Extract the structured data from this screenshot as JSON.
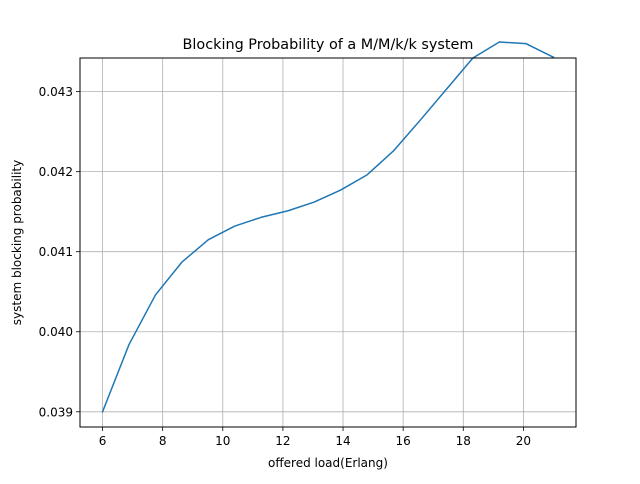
{
  "chart_data": {
    "type": "line",
    "title": "Blocking Probability of a M/M/k/k system",
    "xlabel": "offered load(Erlang)",
    "ylabel": "system blocking probability",
    "xlim": [
      5.25,
      21.75
    ],
    "ylim": [
      0.03881,
      0.04342
    ],
    "xticks": [
      6,
      8,
      10,
      12,
      14,
      16,
      18,
      20
    ],
    "xtick_labels": [
      "6",
      "8",
      "10",
      "12",
      "14",
      "16",
      "18",
      "20"
    ],
    "yticks": [
      0.039,
      0.04,
      0.041,
      0.042,
      0.043
    ],
    "ytick_labels": [
      "0.039",
      "0.040",
      "0.041",
      "0.042",
      "0.043"
    ],
    "grid": true,
    "line_color": "#1f77b4",
    "series": [
      {
        "x": [
          6.0,
          6.88,
          7.76,
          8.64,
          9.52,
          10.4,
          11.28,
          12.16,
          13.04,
          13.92,
          14.8,
          15.68,
          16.56,
          17.44,
          18.32,
          19.2,
          20.08,
          21.0
        ],
        "y": [
          0.039,
          0.03984,
          0.04046,
          0.04087,
          0.04115,
          0.04132,
          0.04143,
          0.04151,
          0.04162,
          0.04177,
          0.04196,
          0.04226,
          0.04264,
          0.04303,
          0.04342,
          0.04362,
          0.0436,
          0.04343
        ]
      }
    ]
  }
}
